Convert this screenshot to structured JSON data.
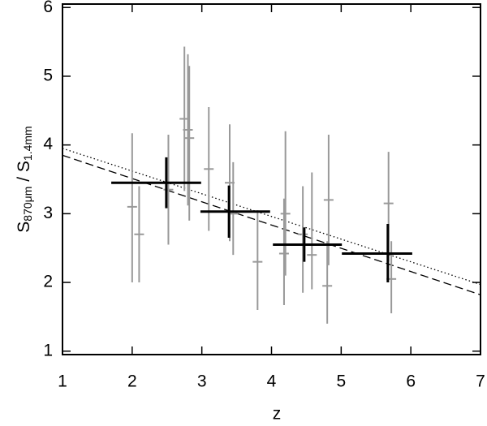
{
  "chart_data": {
    "type": "errorbar",
    "xlabel": "z",
    "ylabel": {
      "s1": "S",
      "sub1": "870μm",
      "s2": " / S",
      "sub2": "1.4mm"
    },
    "xlim": [
      1,
      7
    ],
    "xticks": [
      1,
      2,
      3,
      4,
      5,
      6,
      7
    ],
    "ylim": [
      0.95,
      6.05
    ],
    "yticks": [
      1,
      2,
      3,
      4,
      5,
      6
    ],
    "points": {
      "color": "#999999",
      "x": [
        2.0,
        2.1,
        2.52,
        2.75,
        2.8,
        2.82,
        3.1,
        3.4,
        3.45,
        3.8,
        4.18,
        4.2,
        4.45,
        4.58,
        4.8,
        4.82,
        5.68,
        5.72
      ],
      "y": [
        3.1,
        2.7,
        3.35,
        4.38,
        4.22,
        4.1,
        3.65,
        3.45,
        3.0,
        2.3,
        2.42,
        3.0,
        2.7,
        2.4,
        1.95,
        3.2,
        3.15,
        2.05
      ],
      "yerr_minus": [
        1.1,
        0.7,
        0.8,
        1.05,
        1.1,
        1.2,
        0.9,
        0.85,
        0.6,
        0.7,
        0.75,
        0.9,
        0.85,
        0.5,
        0.55,
        0.95,
        0.85,
        0.5
      ],
      "yerr_plus": [
        1.07,
        0.7,
        0.8,
        1.05,
        1.1,
        1.05,
        0.9,
        0.85,
        0.75,
        0.75,
        0.8,
        1.2,
        0.7,
        1.2,
        0.65,
        0.95,
        0.75,
        0.55
      ]
    },
    "bins": {
      "color": "#000000",
      "x": [
        2.49,
        3.39,
        4.47,
        5.67
      ],
      "y": [
        3.45,
        3.03,
        2.55,
        2.42
      ],
      "xerr_minus": [
        0.79,
        0.41,
        0.45,
        0.66
      ],
      "xerr_plus": [
        0.5,
        0.59,
        0.54,
        0.35
      ],
      "yerr_minus": [
        0.37,
        0.38,
        0.25,
        0.42
      ],
      "yerr_plus": [
        0.37,
        0.38,
        0.25,
        0.43
      ]
    },
    "lines": [
      {
        "style": "dotted",
        "color": "#000000",
        "x": [
          1,
          7
        ],
        "y": [
          3.95,
          1.97
        ]
      },
      {
        "style": "dashed",
        "color": "#000000",
        "x": [
          1,
          7
        ],
        "y": [
          3.85,
          1.82
        ]
      }
    ]
  }
}
